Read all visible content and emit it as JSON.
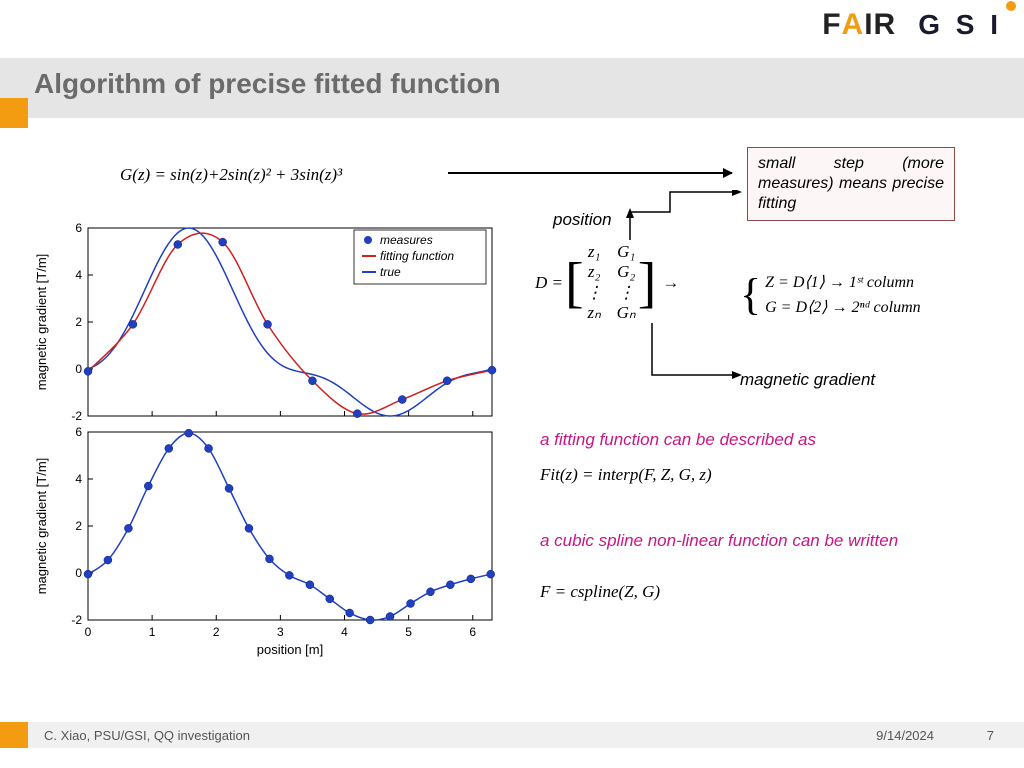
{
  "title": "Algorithm of precise fitted function",
  "logos": {
    "fair": "FAIR",
    "gsi": "G S I"
  },
  "equation_top": "G(z) = sin(z)+2sin(z)² + 3sin(z)³",
  "note_box": "small step (more measures) means precise fitting",
  "position_label": "position",
  "magnetic_label": "magnetic gradient",
  "matrix": {
    "D": "D =",
    "z": [
      "z₁",
      "z₂",
      "⋮",
      "zₙ"
    ],
    "G": [
      "G₁",
      "G₂",
      "⋮",
      "Gₙ"
    ]
  },
  "cols": {
    "arrow": "→",
    "line1": "Z = D⟨1⟩ → 1ˢᵗ column",
    "line2": "G = D⟨2⟩ → 2ⁿᵈ column"
  },
  "pink1": "a fitting function can be described as",
  "eq1": "Fit(z) = interp(F, Z, G, z)",
  "pink2": "a cubic spline non-linear function can be written",
  "eq2": "F = cspline(Z, G)",
  "chart": {
    "ylabel": "magnetic gradient [T/m]",
    "xlabel": "position [m]",
    "xlim": [
      0,
      6.3
    ],
    "ylim_top": [
      -2,
      6
    ],
    "ylim_bot": [
      -2,
      6
    ],
    "xticks": [
      0,
      1,
      2,
      3,
      4,
      5,
      6
    ],
    "yticks": [
      -2,
      0,
      2,
      4,
      6
    ],
    "legend": [
      "measures",
      "fitting function",
      "true"
    ],
    "colors": {
      "measures": "#2040c0",
      "fit": "#d02020",
      "true": "#2040c0",
      "axis": "#000000",
      "bg": "#ffffff"
    },
    "top_measures_x": [
      0,
      0.7,
      1.4,
      2.1,
      2.8,
      3.5,
      4.2,
      4.9,
      5.6,
      6.3
    ],
    "top_measures_y": [
      -0.1,
      1.9,
      5.3,
      5.4,
      1.9,
      -0.5,
      -1.9,
      -1.3,
      -0.5,
      -0.05
    ],
    "bot_measures_x": [
      0,
      0.31,
      0.63,
      0.94,
      1.26,
      1.57,
      1.88,
      2.2,
      2.51,
      2.83,
      3.14,
      3.46,
      3.77,
      4.08,
      4.4,
      4.71,
      5.03,
      5.34,
      5.65,
      5.97,
      6.28
    ],
    "bot_measures_y": [
      -0.05,
      0.55,
      1.9,
      3.7,
      5.3,
      5.95,
      5.3,
      3.6,
      1.9,
      0.6,
      -0.1,
      -0.5,
      -1.1,
      -1.7,
      -2.0,
      -1.85,
      -1.3,
      -0.8,
      -0.5,
      -0.25,
      -0.05
    ],
    "marker_radius": 4
  },
  "footer": {
    "author": "C. Xiao, PSU/GSI, QQ investigation",
    "date": "9/14/2024",
    "page": "7"
  }
}
